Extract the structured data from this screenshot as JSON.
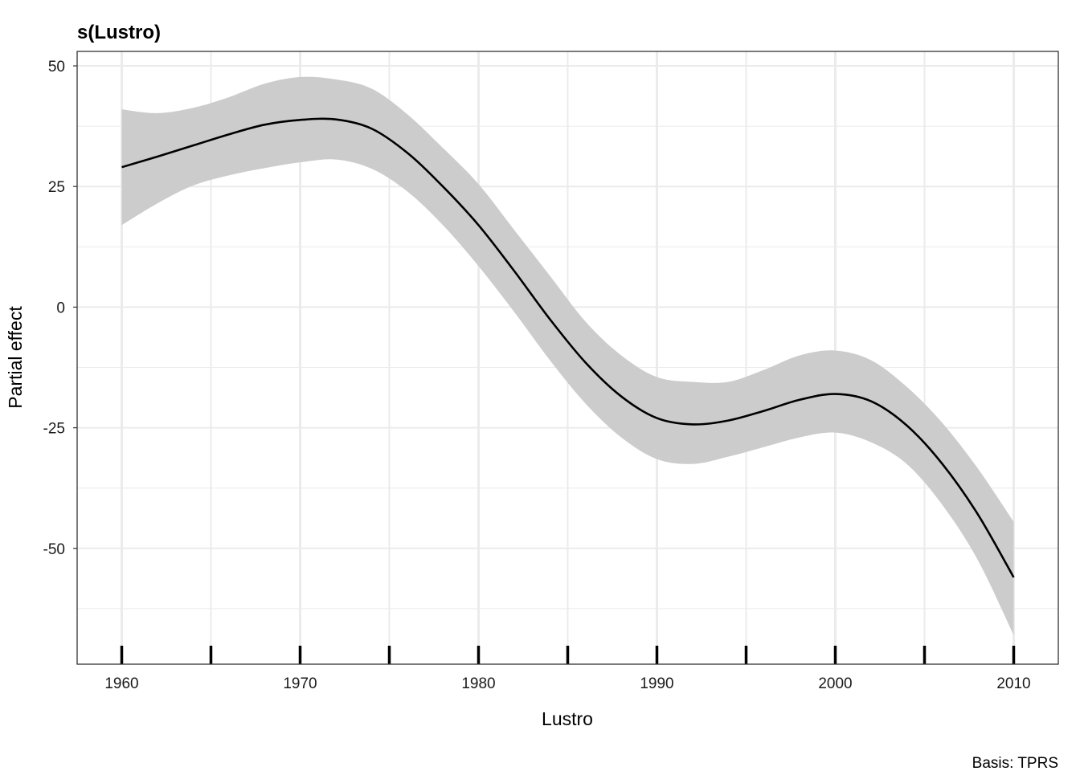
{
  "chart_data": {
    "type": "line",
    "title": "s(Lustro)",
    "xlabel": "Lustro",
    "ylabel": "Partial effect",
    "caption": "Basis: TPRS",
    "xlim": [
      1957.5,
      2012.5
    ],
    "ylim": [
      -74,
      53
    ],
    "x_ticks": [
      1960,
      1970,
      1980,
      1990,
      2000,
      2010
    ],
    "x_tick_labels": [
      "1960",
      "1970",
      "1980",
      "1990",
      "2000",
      "2010"
    ],
    "y_ticks": [
      50,
      25,
      0,
      -25,
      -50
    ],
    "y_tick_labels": [
      "50",
      "25",
      "0",
      "-25",
      "-50"
    ],
    "y_minor_gridlines": [
      37.5,
      12.5,
      -12.5,
      -37.5,
      -62.5
    ],
    "x_minor_gridlines": [
      1965,
      1975,
      1985,
      1995,
      2005
    ],
    "rug": [
      1960,
      1965,
      1970,
      1975,
      1980,
      1985,
      1990,
      1995,
      2000,
      2005,
      2010
    ],
    "grid": true,
    "colors": {
      "line": "#000000",
      "band": "#cccccc",
      "grid": "#ebebeb"
    },
    "series": [
      {
        "x": [
          1960,
          1962,
          1964,
          1966,
          1968,
          1970,
          1972,
          1974,
          1976,
          1978,
          1980,
          1982,
          1984,
          1986,
          1988,
          1990,
          1992,
          1994,
          1996,
          1998,
          2000,
          2002,
          2004,
          2006,
          2008,
          2010
        ],
        "y": [
          29.0,
          31.2,
          33.5,
          35.8,
          37.8,
          38.8,
          38.9,
          37.0,
          32.0,
          25.0,
          17.0,
          7.5,
          -2.5,
          -11.5,
          -18.5,
          -23.0,
          -24.3,
          -23.5,
          -21.5,
          -19.2,
          -18.0,
          -19.5,
          -24.5,
          -32.5,
          -43.0,
          -56.0
        ],
        "upper": [
          41.0,
          40.2,
          41.3,
          43.5,
          46.3,
          47.7,
          47.2,
          45.3,
          40.0,
          33.0,
          25.5,
          16.0,
          6.5,
          -3.0,
          -10.0,
          -14.5,
          -15.5,
          -15.5,
          -13.0,
          -10.0,
          -9.0,
          -11.0,
          -16.5,
          -24.0,
          -33.5,
          -44.5
        ],
        "lower": [
          17.0,
          21.5,
          25.2,
          27.3,
          28.8,
          30.0,
          30.6,
          28.7,
          24.0,
          17.0,
          8.5,
          -1.0,
          -11.0,
          -20.0,
          -27.0,
          -31.5,
          -32.5,
          -31.0,
          -29.0,
          -27.0,
          -26.0,
          -28.0,
          -32.5,
          -41.0,
          -52.5,
          -68.0
        ]
      }
    ]
  }
}
